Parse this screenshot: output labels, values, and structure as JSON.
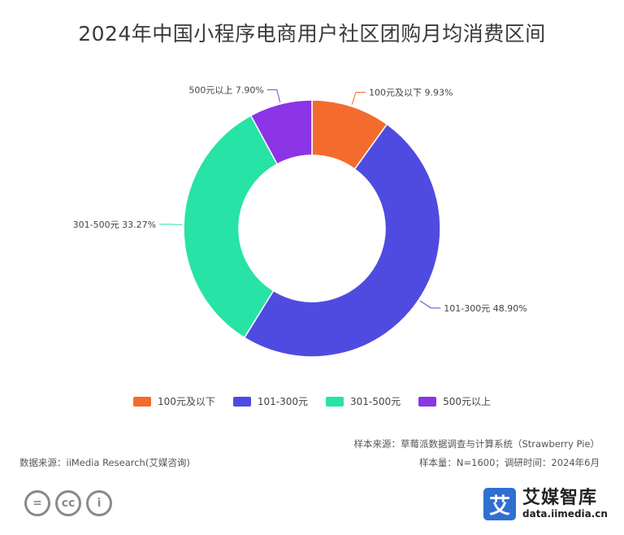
{
  "title": "2024年中国小程序电商用户社区团购月均消费区间",
  "chart_data": {
    "type": "pie",
    "donut": true,
    "title": "2024年中国小程序电商用户社区团购月均消费区间",
    "legend_position": "bottom",
    "slices": [
      {
        "label": "100元及以下",
        "value": 9.93,
        "value_text": "9.93%",
        "color": "#f46b2e"
      },
      {
        "label": "101-300元",
        "value": 48.9,
        "value_text": "48.90%",
        "color": "#4f4be0"
      },
      {
        "label": "301-500元",
        "value": 33.27,
        "value_text": "33.27%",
        "color": "#27e3a6"
      },
      {
        "label": "500元以上",
        "value": 7.9,
        "value_text": "7.90%",
        "color": "#8b35e6"
      }
    ]
  },
  "footer": {
    "sample_source": "样本来源：草莓派数据调查与计算系统（Strawberry Pie）",
    "data_source": "数据来源：iiMedia Research(艾媒咨询)",
    "sample_size": "样本量：N=1600；调研时间：2024年6月"
  },
  "badges": [
    {
      "icon": "cc-equals-icon",
      "text": "="
    },
    {
      "icon": "cc-icon",
      "text": "cc"
    },
    {
      "icon": "cc-person-icon",
      "text": "i"
    }
  ],
  "brand": {
    "mark": "艾",
    "name": "艾媒智库",
    "url": "data.iimedia.cn",
    "color": "#2f6fd0"
  }
}
